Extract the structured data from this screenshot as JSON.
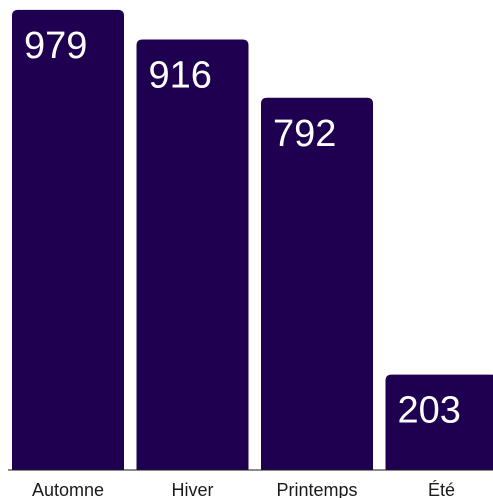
{
  "chart_data": {
    "type": "bar",
    "categories": [
      "Automne",
      "Hiver",
      "Printemps",
      "Été"
    ],
    "values": [
      979,
      916,
      792,
      203
    ],
    "title": "",
    "xlabel": "",
    "ylabel": "",
    "ylim": [
      0,
      1000
    ],
    "grid": false,
    "legend": "none",
    "data_labels": true,
    "colors": {
      "bar": "#1f0050",
      "label": "#ffffff",
      "axis": "#1a1a1a"
    }
  }
}
